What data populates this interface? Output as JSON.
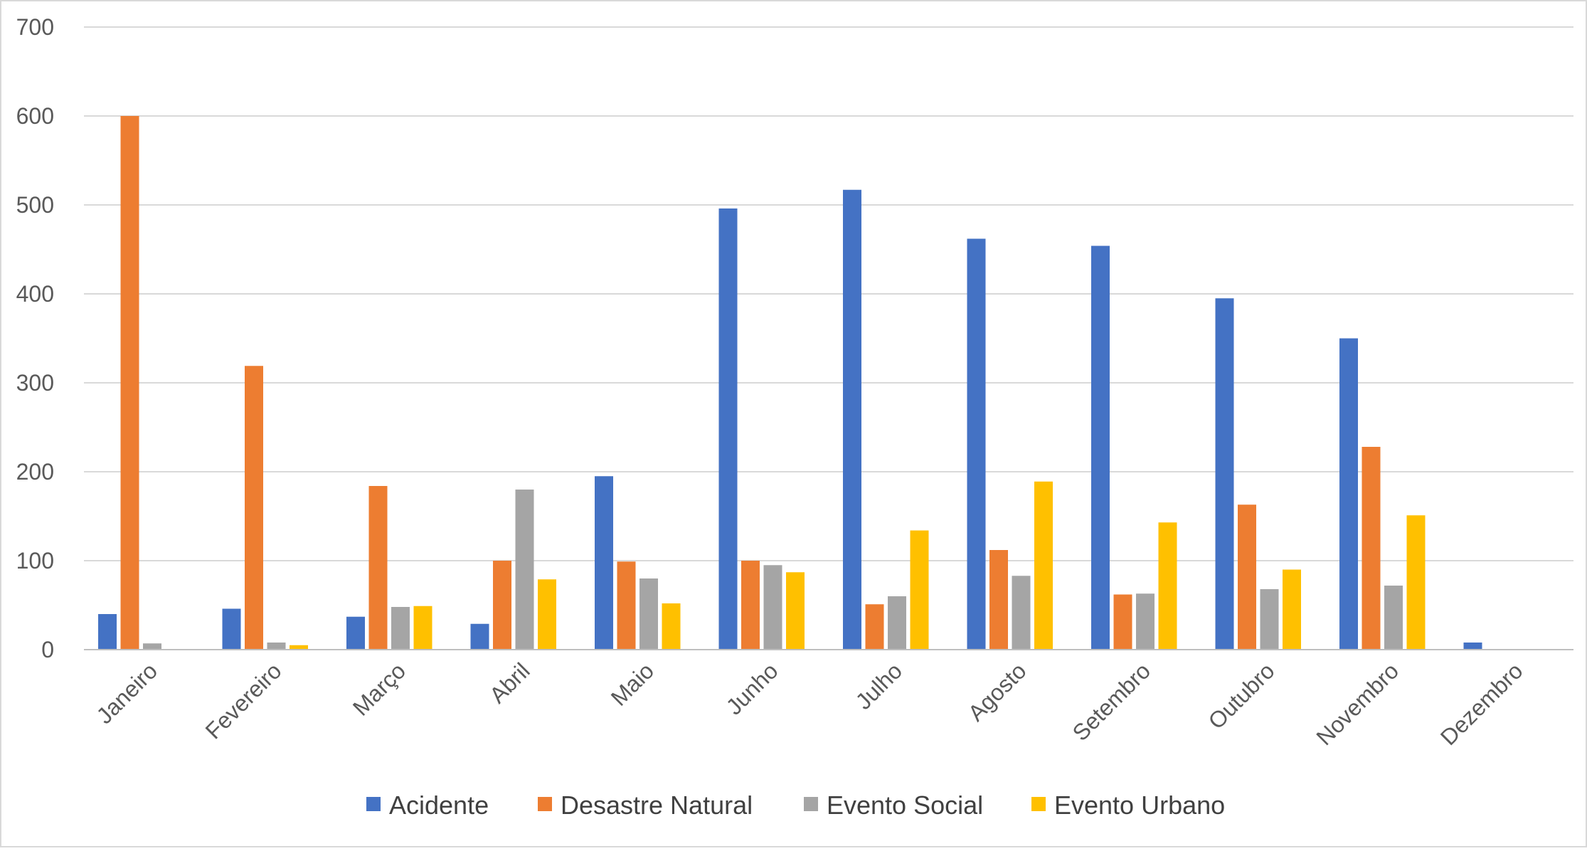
{
  "chart_data": {
    "type": "bar",
    "title": "",
    "xlabel": "",
    "ylabel": "",
    "ylim": [
      0,
      700
    ],
    "yticks": [
      0,
      100,
      200,
      300,
      400,
      500,
      600,
      700
    ],
    "grid": true,
    "legend_position": "bottom",
    "categories": [
      "Janeiro",
      "Fevereiro",
      "Março",
      "Abril",
      "Maio",
      "Junho",
      "Julho",
      "Agosto",
      "Setembro",
      "Outubro",
      "Novembro",
      "Dezembro"
    ],
    "series": [
      {
        "name": "Acidente",
        "color": "#4472C4",
        "values": [
          40,
          46,
          37,
          29,
          195,
          496,
          517,
          462,
          454,
          395,
          350,
          8
        ]
      },
      {
        "name": "Desastre Natural",
        "color": "#ED7D31",
        "values": [
          600,
          319,
          184,
          100,
          99,
          100,
          51,
          112,
          62,
          163,
          228,
          0
        ]
      },
      {
        "name": "Evento Social",
        "color": "#A5A5A5",
        "values": [
          7,
          8,
          48,
          180,
          80,
          95,
          60,
          83,
          63,
          68,
          72,
          0
        ]
      },
      {
        "name": "Evento Urbano",
        "color": "#FFC000",
        "values": [
          0,
          5,
          49,
          79,
          52,
          87,
          134,
          189,
          143,
          90,
          151,
          0
        ]
      }
    ]
  }
}
